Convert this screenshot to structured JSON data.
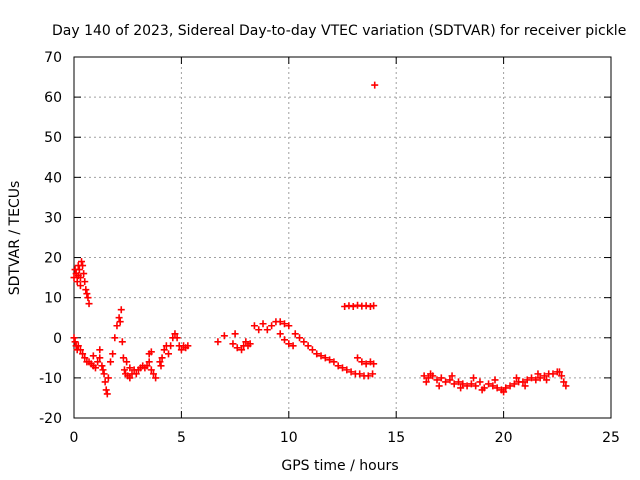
{
  "chart_data": {
    "type": "scatter",
    "title": "Day 140 of 2023, Sidereal Day-to-day VTEC variation (SDTVAR) for receiver pickle",
    "xlabel": "GPS time / hours",
    "ylabel": "SDTVAR / TECUs",
    "xlim": [
      0,
      25
    ],
    "ylim": [
      -20,
      70
    ],
    "xticks": [
      0,
      5,
      10,
      15,
      20,
      25
    ],
    "yticks": [
      -20,
      -10,
      0,
      10,
      20,
      30,
      40,
      50,
      60,
      70
    ],
    "grid": true,
    "marker": "+",
    "colors": {
      "marker": "#ff0000",
      "grid": "#a0a0a0",
      "axis": "#000000"
    },
    "series": [
      {
        "name": "SDTVAR",
        "points": [
          [
            0.0,
            15.0
          ],
          [
            0.05,
            17.0
          ],
          [
            0.1,
            16.0
          ],
          [
            0.15,
            14.0
          ],
          [
            0.2,
            18.0
          ],
          [
            0.25,
            17.0
          ],
          [
            0.3,
            15.0
          ],
          [
            0.35,
            19.0
          ],
          [
            0.4,
            18.0
          ],
          [
            0.45,
            16.0
          ],
          [
            0.5,
            14.0
          ],
          [
            0.55,
            12.0
          ],
          [
            0.6,
            11.0
          ],
          [
            0.65,
            10.0
          ],
          [
            0.7,
            8.5
          ],
          [
            0.3,
            13.0
          ],
          [
            0.2,
            15.5
          ],
          [
            0.0,
            0.0
          ],
          [
            0.05,
            -1.0
          ],
          [
            0.1,
            -2.0
          ],
          [
            0.15,
            -3.0
          ],
          [
            0.2,
            -2.0
          ],
          [
            0.3,
            -3.0
          ],
          [
            0.4,
            -4.0
          ],
          [
            0.5,
            -5.0
          ],
          [
            0.6,
            -6.0
          ],
          [
            0.7,
            -6.0
          ],
          [
            0.8,
            -6.5
          ],
          [
            0.9,
            -7.0
          ],
          [
            1.0,
            -7.5
          ],
          [
            1.1,
            -6.0
          ],
          [
            1.2,
            -5.0
          ],
          [
            1.3,
            -7.0
          ],
          [
            1.4,
            -9.0
          ],
          [
            1.45,
            -11.0
          ],
          [
            1.5,
            -13.0
          ],
          [
            1.55,
            -14.0
          ],
          [
            1.6,
            -10.0
          ],
          [
            1.7,
            -6.0
          ],
          [
            1.8,
            -4.0
          ],
          [
            1.9,
            0.0
          ],
          [
            2.0,
            3.0
          ],
          [
            2.1,
            5.0
          ],
          [
            2.2,
            7.0
          ],
          [
            2.15,
            4.0
          ],
          [
            2.25,
            -1.0
          ],
          [
            2.3,
            -5.0
          ],
          [
            2.35,
            -8.0
          ],
          [
            2.4,
            -9.0
          ],
          [
            2.5,
            -9.5
          ],
          [
            2.6,
            -10.0
          ],
          [
            2.7,
            -9.0
          ],
          [
            2.8,
            -8.0
          ],
          [
            2.9,
            -9.0
          ],
          [
            3.0,
            -8.0
          ],
          [
            3.1,
            -7.5
          ],
          [
            3.2,
            -7.0
          ],
          [
            3.3,
            -7.5
          ],
          [
            3.4,
            -7.0
          ],
          [
            3.5,
            -6.0
          ],
          [
            3.6,
            -8.0
          ],
          [
            3.7,
            -9.0
          ],
          [
            3.5,
            -4.0
          ],
          [
            3.6,
            -3.5
          ],
          [
            4.0,
            -6.0
          ],
          [
            4.1,
            -5.0
          ],
          [
            4.2,
            -3.0
          ],
          [
            4.3,
            -2.0
          ],
          [
            4.4,
            -4.0
          ],
          [
            4.5,
            -2.0
          ],
          [
            4.6,
            0.0
          ],
          [
            4.7,
            1.0
          ],
          [
            4.8,
            0.0
          ],
          [
            4.9,
            -2.0
          ],
          [
            5.0,
            -3.0
          ],
          [
            5.1,
            -2.0
          ],
          [
            5.2,
            -2.5
          ],
          [
            5.3,
            -2.0
          ],
          [
            1.2,
            -3.0
          ],
          [
            0.9,
            -4.5
          ],
          [
            2.6,
            -7.5
          ],
          [
            3.8,
            -10.0
          ],
          [
            4.05,
            -7.0
          ],
          [
            1.35,
            -8.0
          ],
          [
            2.45,
            -6.0
          ],
          [
            6.7,
            -1.0
          ],
          [
            7.0,
            0.5
          ],
          [
            7.5,
            1.0
          ],
          [
            7.4,
            -1.5
          ],
          [
            7.6,
            -2.5
          ],
          [
            7.8,
            -3.0
          ],
          [
            7.9,
            -2.0
          ],
          [
            8.0,
            -1.0
          ],
          [
            8.1,
            -2.0
          ],
          [
            8.2,
            -1.5
          ],
          [
            8.4,
            3.0
          ],
          [
            8.6,
            2.0
          ],
          [
            8.8,
            3.5
          ],
          [
            9.0,
            2.0
          ],
          [
            9.2,
            3.0
          ],
          [
            9.4,
            4.0
          ],
          [
            9.6,
            4.0
          ],
          [
            9.8,
            3.5
          ],
          [
            10.0,
            3.0
          ],
          [
            9.6,
            1.0
          ],
          [
            9.8,
            -0.5
          ],
          [
            10.0,
            -1.5
          ],
          [
            10.2,
            -2.0
          ],
          [
            10.3,
            1.0
          ],
          [
            10.5,
            0.0
          ],
          [
            10.7,
            -1.0
          ],
          [
            10.9,
            -2.0
          ],
          [
            11.1,
            -3.0
          ],
          [
            11.3,
            -4.0
          ],
          [
            11.5,
            -4.5
          ],
          [
            11.7,
            -5.0
          ],
          [
            11.9,
            -5.5
          ],
          [
            12.1,
            -6.0
          ],
          [
            12.3,
            -7.0
          ],
          [
            12.5,
            -7.5
          ],
          [
            12.7,
            -8.0
          ],
          [
            12.9,
            -8.5
          ],
          [
            13.1,
            -9.0
          ],
          [
            13.3,
            -9.0
          ],
          [
            13.5,
            -9.5
          ],
          [
            13.7,
            -9.5
          ],
          [
            13.9,
            -9.0
          ],
          [
            13.2,
            -5.0
          ],
          [
            13.4,
            -6.0
          ],
          [
            13.6,
            -6.5
          ],
          [
            13.8,
            -6.0
          ],
          [
            13.95,
            -6.5
          ],
          [
            12.6,
            7.8
          ],
          [
            12.8,
            8.0
          ],
          [
            13.0,
            7.8
          ],
          [
            13.2,
            8.1
          ],
          [
            13.4,
            7.9
          ],
          [
            13.6,
            8.0
          ],
          [
            13.8,
            7.8
          ],
          [
            13.95,
            8.0
          ],
          [
            14.0,
            63.0
          ],
          [
            16.3,
            -9.5
          ],
          [
            16.5,
            -10.0
          ],
          [
            16.7,
            -9.5
          ],
          [
            16.9,
            -10.5
          ],
          [
            17.1,
            -10.0
          ],
          [
            17.3,
            -11.0
          ],
          [
            17.5,
            -10.5
          ],
          [
            17.7,
            -11.5
          ],
          [
            17.9,
            -11.0
          ],
          [
            18.1,
            -11.5
          ],
          [
            18.3,
            -12.0
          ],
          [
            18.5,
            -11.5
          ],
          [
            18.7,
            -12.0
          ],
          [
            18.9,
            -11.0
          ],
          [
            19.1,
            -12.5
          ],
          [
            19.3,
            -11.5
          ],
          [
            19.5,
            -12.0
          ],
          [
            19.7,
            -12.5
          ],
          [
            19.9,
            -13.0
          ],
          [
            20.1,
            -12.5
          ],
          [
            20.3,
            -12.0
          ],
          [
            20.5,
            -11.5
          ],
          [
            20.7,
            -11.0
          ],
          [
            20.9,
            -11.0
          ],
          [
            21.1,
            -10.5
          ],
          [
            21.3,
            -10.0
          ],
          [
            21.5,
            -10.5
          ],
          [
            21.7,
            -10.0
          ],
          [
            21.9,
            -9.5
          ],
          [
            22.1,
            -9.0
          ],
          [
            22.3,
            -9.0
          ],
          [
            22.5,
            -8.5
          ],
          [
            22.7,
            -9.5
          ],
          [
            22.8,
            -11.0
          ],
          [
            22.9,
            -12.0
          ],
          [
            16.4,
            -11.0
          ],
          [
            17.0,
            -12.0
          ],
          [
            18.0,
            -12.5
          ],
          [
            19.0,
            -13.0
          ],
          [
            20.0,
            -13.5
          ],
          [
            21.0,
            -12.0
          ],
          [
            22.0,
            -10.5
          ],
          [
            16.6,
            -9.0
          ],
          [
            17.6,
            -9.5
          ],
          [
            18.6,
            -10.0
          ],
          [
            19.6,
            -10.5
          ],
          [
            20.6,
            -10.0
          ],
          [
            21.6,
            -9.0
          ],
          [
            22.6,
            -8.5
          ]
        ]
      }
    ]
  }
}
